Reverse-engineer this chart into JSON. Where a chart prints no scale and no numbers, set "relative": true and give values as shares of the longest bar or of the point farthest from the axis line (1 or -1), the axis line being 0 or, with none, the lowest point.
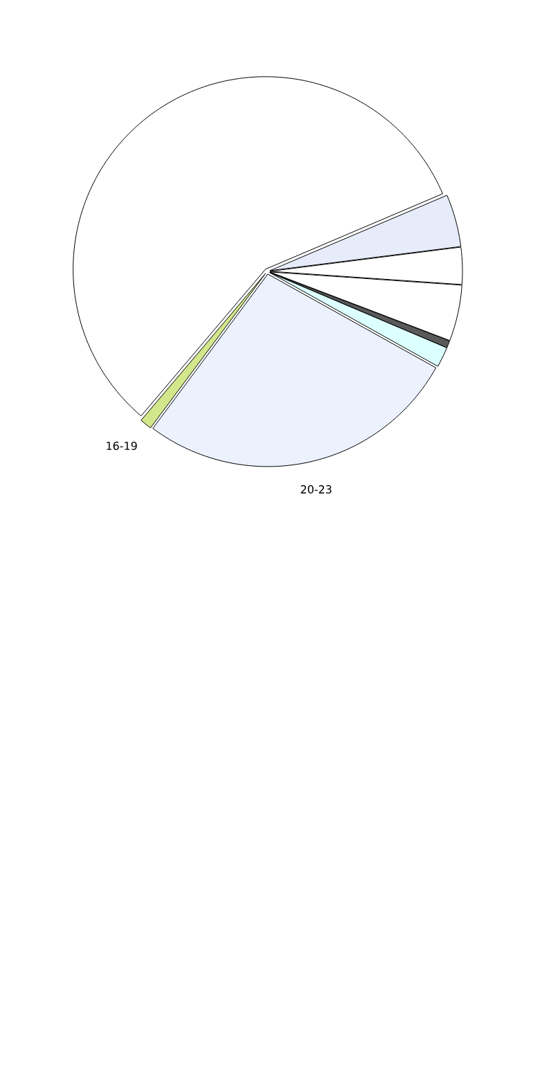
{
  "chart_data": {
    "type": "pie",
    "relative": true,
    "categories": [
      null,
      null,
      null,
      null,
      null,
      null,
      "20-23",
      "16-19"
    ],
    "values": [
      57.4,
      4.4,
      3.1,
      4.7,
      0.6,
      1.7,
      27.1,
      1.0
    ],
    "colors": [
      "#ffffff",
      "#e6ecf9",
      "#ffffff",
      "#ffffff",
      "#5a5a5a",
      "#dcffff",
      "#ebf1fd",
      "#d2e78b"
    ]
  }
}
